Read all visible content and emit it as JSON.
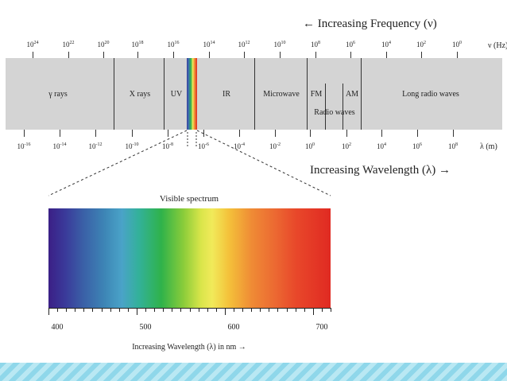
{
  "frequency_axis": {
    "title": "← Increasing Frequency (ν)",
    "unit": "ν (Hz)",
    "ticks": [
      {
        "base": "10",
        "exp": "24"
      },
      {
        "base": "10",
        "exp": "22"
      },
      {
        "base": "10",
        "exp": "20"
      },
      {
        "base": "10",
        "exp": "18"
      },
      {
        "base": "10",
        "exp": "16"
      },
      {
        "base": "10",
        "exp": "14"
      },
      {
        "base": "10",
        "exp": "12"
      },
      {
        "base": "10",
        "exp": "10"
      },
      {
        "base": "10",
        "exp": "8"
      },
      {
        "base": "10",
        "exp": "6"
      },
      {
        "base": "10",
        "exp": "4"
      },
      {
        "base": "10",
        "exp": "2"
      },
      {
        "base": "10",
        "exp": "0"
      }
    ]
  },
  "wavelength_axis": {
    "title": "Increasing Wavelength (λ) →",
    "unit": "λ (m)",
    "ticks": [
      {
        "base": "10",
        "exp": "-16"
      },
      {
        "base": "10",
        "exp": "-14"
      },
      {
        "base": "10",
        "exp": "-12"
      },
      {
        "base": "10",
        "exp": "-10"
      },
      {
        "base": "10",
        "exp": "-8"
      },
      {
        "base": "10",
        "exp": "-6"
      },
      {
        "base": "10",
        "exp": "-4"
      },
      {
        "base": "10",
        "exp": "-2"
      },
      {
        "base": "10",
        "exp": "0"
      },
      {
        "base": "10",
        "exp": "2"
      },
      {
        "base": "10",
        "exp": "4"
      },
      {
        "base": "10",
        "exp": "6"
      },
      {
        "base": "10",
        "exp": "8"
      }
    ]
  },
  "bands": {
    "gamma": "γ rays",
    "xray": "X rays",
    "uv": "UV",
    "ir": "IR",
    "microwave": "Microwave",
    "fm": "FM",
    "am": "AM",
    "radio": "Radio waves",
    "long_radio": "Long radio waves"
  },
  "visible": {
    "title": "Visible spectrum",
    "nm_ticks": [
      "400",
      "500",
      "600",
      "700"
    ],
    "xlabel": "Increasing Wavelength (λ) in nm →"
  },
  "colors": {
    "band_gray": "#d4d4d4",
    "footer_light": "#b9e8f3",
    "footer_dark": "#8fd7ea"
  }
}
